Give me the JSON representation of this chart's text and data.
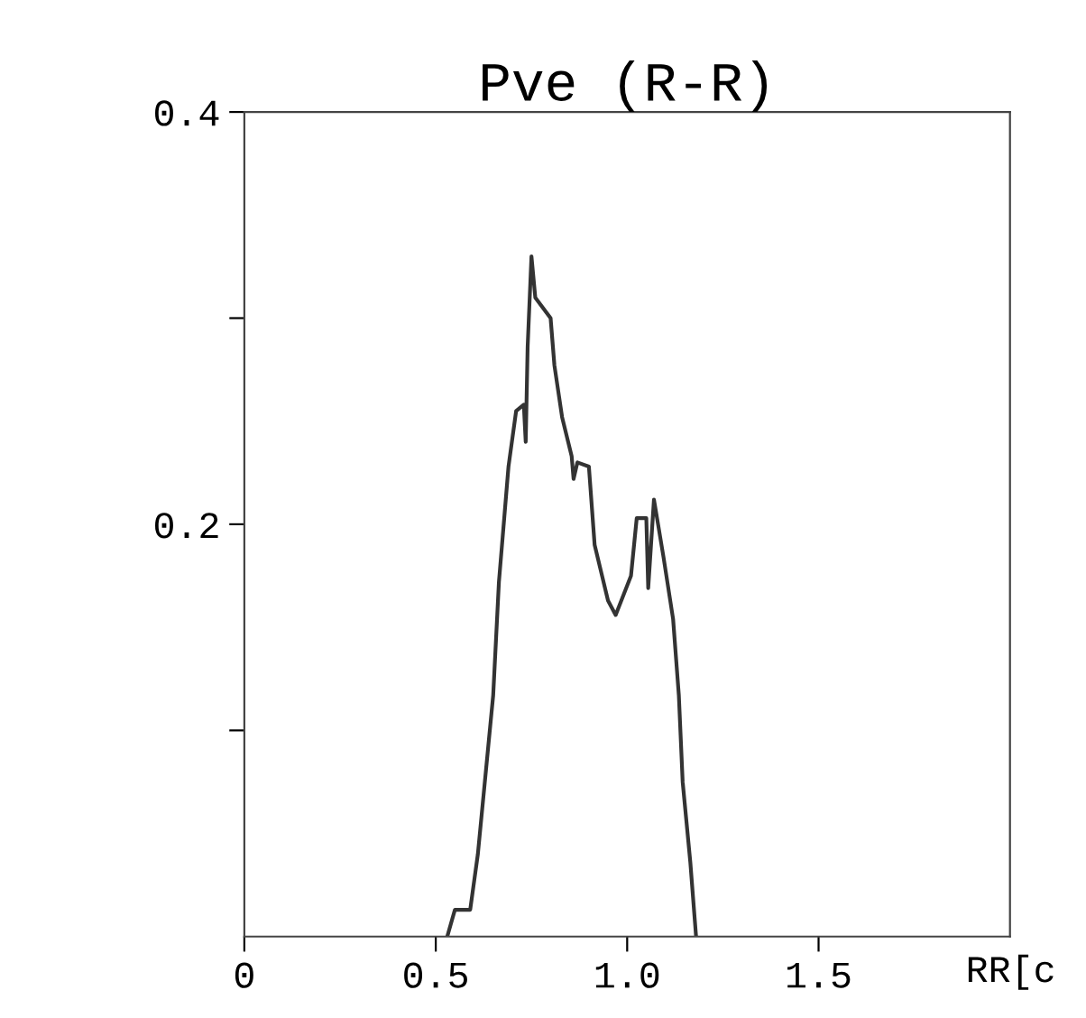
{
  "chart_data": {
    "type": "line",
    "title": "Pve (R-R)",
    "xlabel": "RR[c",
    "x": [
      0.53,
      0.55,
      0.59,
      0.61,
      0.65,
      0.665,
      0.69,
      0.71,
      0.73,
      0.735,
      0.74,
      0.75,
      0.76,
      0.8,
      0.81,
      0.83,
      0.855,
      0.86,
      0.87,
      0.9,
      0.915,
      0.95,
      0.97,
      1.01,
      1.025,
      1.05,
      1.055,
      1.07,
      1.095,
      1.12,
      1.135,
      1.145,
      1.165,
      1.18
    ],
    "series": [
      {
        "color": "#333333",
        "values": [
          0,
          0.013,
          0.013,
          0.04,
          0.117,
          0.172,
          0.228,
          0.255,
          0.258,
          0.24,
          0.286,
          0.33,
          0.31,
          0.3,
          0.277,
          0.252,
          0.233,
          0.222,
          0.23,
          0.228,
          0.19,
          0.163,
          0.156,
          0.175,
          0.203,
          0.203,
          0.169,
          0.212,
          0.184,
          0.154,
          0.117,
          0.075,
          0.036,
          0
        ]
      }
    ],
    "xlim": [
      0,
      2.0
    ],
    "ylim": [
      0,
      0.4
    ],
    "xticks": [
      {
        "value": 0,
        "label": "0"
      },
      {
        "value": 0.5,
        "label": "0.5"
      },
      {
        "value": 1.0,
        "label": "1.0"
      },
      {
        "value": 1.5,
        "label": "1.5"
      }
    ],
    "yticks": [
      {
        "value": 0.1,
        "label": null
      },
      {
        "value": 0.2,
        "label": "0.2"
      },
      {
        "value": 0.3,
        "label": null
      },
      {
        "value": 0.4,
        "label": "0.4"
      }
    ],
    "grid": false,
    "legend": false,
    "marker": "none",
    "line_style": "solid"
  }
}
